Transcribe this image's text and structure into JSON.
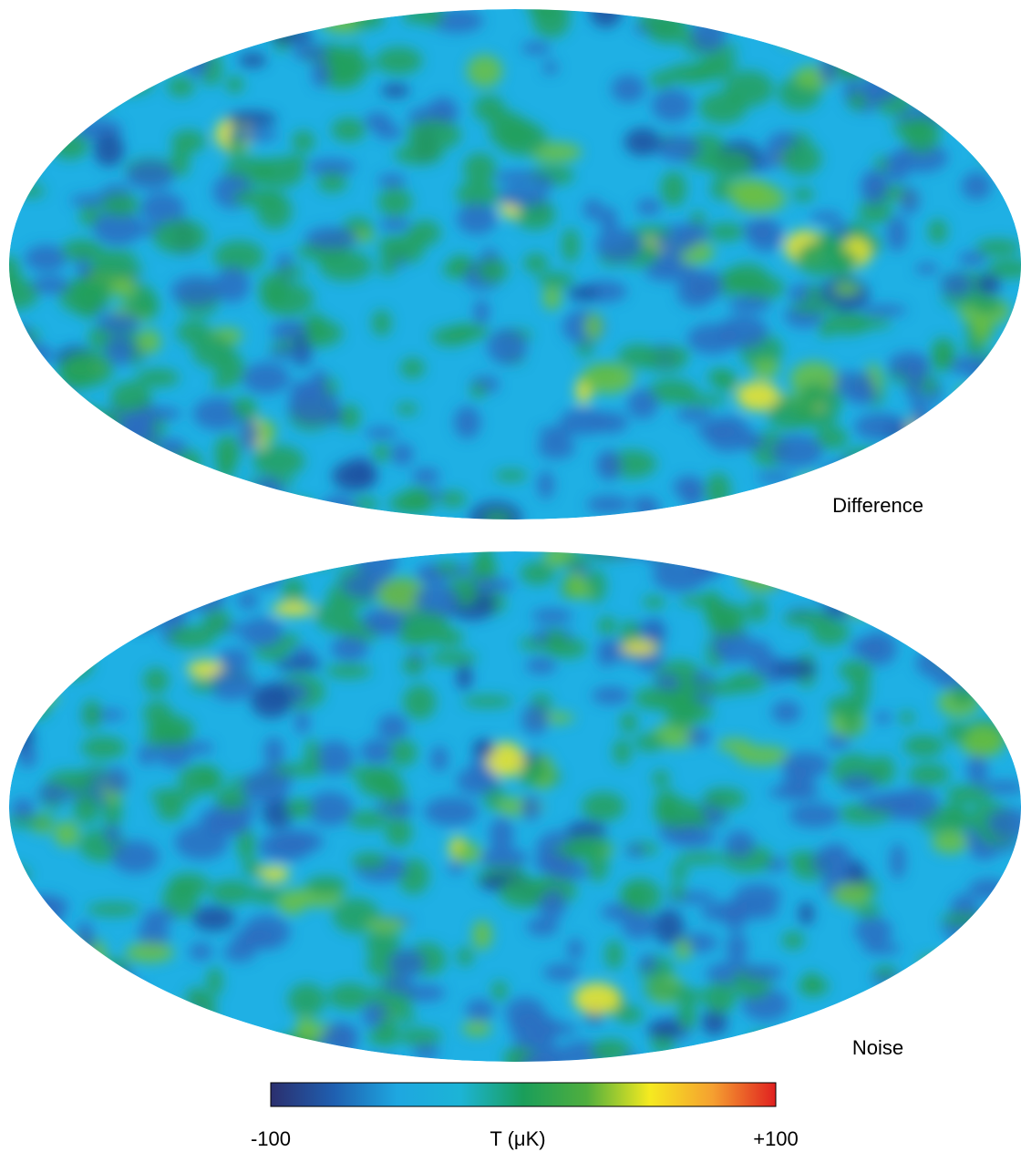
{
  "maps": [
    {
      "label": "Difference"
    },
    {
      "label": "Noise"
    }
  ],
  "colorbar": {
    "label": "T (μK)",
    "lim": [
      -100,
      100
    ],
    "ticks": [
      -100,
      {
        "value": 100,
        "label": "+100"
      }
    ],
    "colors": [
      "#2b2f6e",
      "#1f5fb0",
      "#1ea7e0",
      "#1cb4d6",
      "#1a9e5a",
      "#4fae3e",
      "#f5ea20",
      "#f5a030",
      "#e02020"
    ]
  }
}
